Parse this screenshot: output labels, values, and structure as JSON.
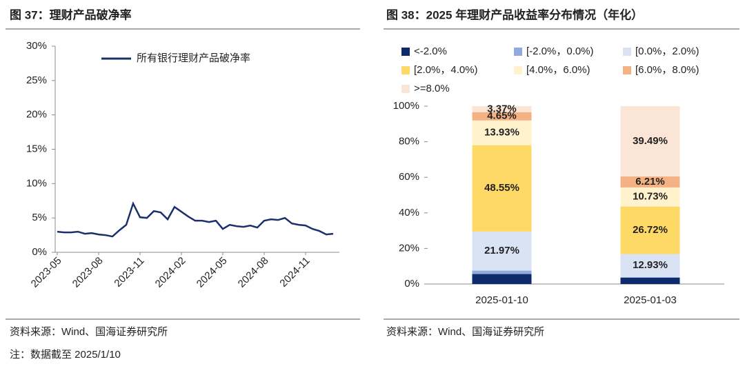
{
  "chart_data": [
    {
      "type": "line",
      "title": "图 37：理财产品破净率",
      "categories": [
        "2023-05",
        null,
        null,
        null,
        null,
        null,
        "2023-08",
        null,
        null,
        null,
        null,
        null,
        "2023-11",
        null,
        null,
        null,
        null,
        null,
        "2024-02",
        null,
        null,
        null,
        null,
        null,
        "2024-05",
        null,
        null,
        null,
        null,
        null,
        "2024-08",
        null,
        null,
        null,
        null,
        null,
        "2024-11",
        null,
        null,
        null,
        null
      ],
      "series": [
        {
          "name": "所有银行理财产品破净率",
          "color": "#1a2f6b",
          "values": [
            3.0,
            2.9,
            2.9,
            3.0,
            2.7,
            2.8,
            2.6,
            2.5,
            2.3,
            3.2,
            4.0,
            7.1,
            5.1,
            5.0,
            6.0,
            5.8,
            4.8,
            6.6,
            5.9,
            5.2,
            4.6,
            4.6,
            4.4,
            4.6,
            3.4,
            4.0,
            3.8,
            3.7,
            3.9,
            3.6,
            4.6,
            4.8,
            4.7,
            5.0,
            4.2,
            4.0,
            3.9,
            3.4,
            3.1,
            2.6,
            2.7
          ]
        }
      ],
      "ylim": [
        0,
        30
      ],
      "yticks": [
        {
          "value": 0,
          "label": "0%"
        },
        {
          "value": 5,
          "label": "5%"
        },
        {
          "value": 10,
          "label": "10%"
        },
        {
          "value": 15,
          "label": "15%"
        },
        {
          "value": 20,
          "label": "20%"
        },
        {
          "value": 25,
          "label": "25%"
        },
        {
          "value": 30,
          "label": "30%"
        }
      ],
      "source": "资料来源：Wind、国海证券研究所",
      "note": "注：数据截至 2025/1/10"
    },
    {
      "type": "stacked_bar",
      "title": "图 38：2025 年理财产品收益率分布情况（年化）",
      "categories": [
        "2025-01-10",
        "2025-01-03"
      ],
      "series": [
        {
          "name": "<-2.0%",
          "color": "#0d2a6b",
          "values": [
            5.6,
            3.5
          ],
          "value_labels": [
            null,
            null
          ]
        },
        {
          "name": "[-2.0%，0.0%)",
          "color": "#8faadc",
          "values": [
            1.93,
            0.42
          ],
          "value_labels": [
            null,
            null
          ]
        },
        {
          "name": "[0.0%，2.0%)",
          "color": "#dae3f3",
          "values": [
            21.97,
            12.93
          ],
          "value_labels": [
            "21.97%",
            "12.93%"
          ]
        },
        {
          "name": "[2.0%，4.0%)",
          "color": "#ffd966",
          "values": [
            48.55,
            26.72
          ],
          "value_labels": [
            "48.55%",
            "26.72%"
          ]
        },
        {
          "name": "[4.0%，6.0%)",
          "color": "#fff2cc",
          "values": [
            13.93,
            10.73
          ],
          "value_labels": [
            "13.93%",
            "10.73%"
          ]
        },
        {
          "name": "[6.0%，8.0%)",
          "color": "#f4b183",
          "values": [
            4.65,
            6.21
          ],
          "value_labels": [
            "4.65%",
            "6.21%"
          ]
        },
        {
          "name": ">=8.0%",
          "color": "#fbe5d6",
          "values": [
            3.37,
            39.49
          ],
          "value_labels": [
            "3.37%",
            "39.49%"
          ]
        }
      ],
      "ylim": [
        0,
        100
      ],
      "yticks": [
        {
          "value": 0,
          "label": "0%"
        },
        {
          "value": 20,
          "label": "20%"
        },
        {
          "value": 40,
          "label": "40%"
        },
        {
          "value": 60,
          "label": "60%"
        },
        {
          "value": 80,
          "label": "80%"
        },
        {
          "value": 100,
          "label": "100%"
        }
      ],
      "source": "资料来源：Wind、国海证券研究所"
    }
  ]
}
